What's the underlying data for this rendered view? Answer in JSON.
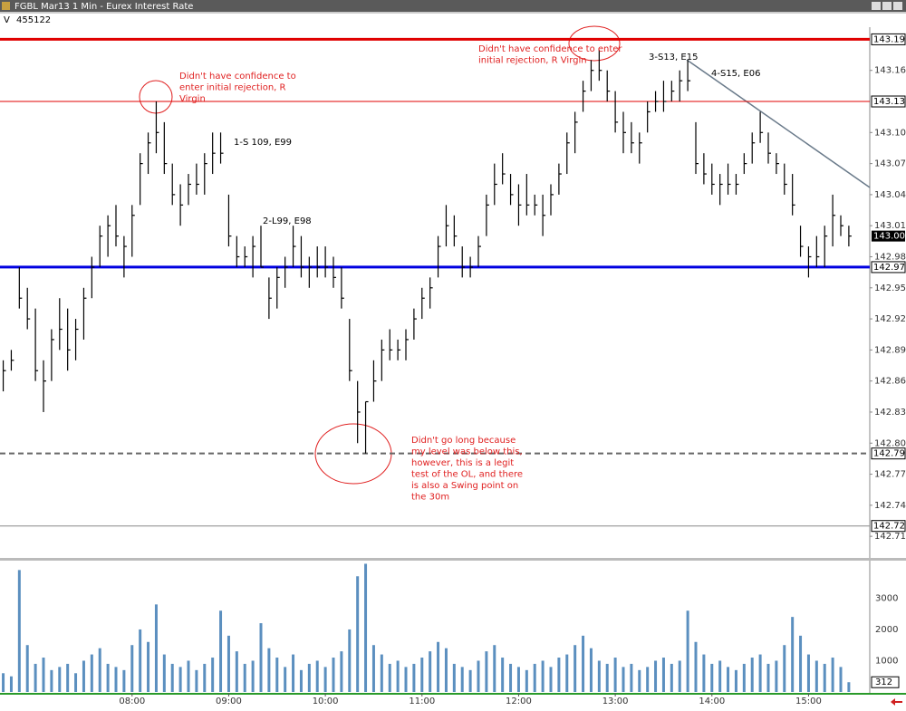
{
  "chart_data": {
    "type": "ohlc",
    "title": "FGBL Mar13 1 Min - Eurex Interest Rate",
    "volume_label": "V",
    "volume_total": 455122,
    "x": [
      "06:40",
      "06:45",
      "06:50",
      "06:55",
      "07:00",
      "07:05",
      "07:10",
      "07:15",
      "07:20",
      "07:25",
      "07:30",
      "07:35",
      "07:40",
      "07:45",
      "07:50",
      "07:55",
      "08:00",
      "08:05",
      "08:10",
      "08:15",
      "08:20",
      "08:25",
      "08:30",
      "08:35",
      "08:40",
      "08:45",
      "08:50",
      "08:55",
      "09:00",
      "09:05",
      "09:10",
      "09:15",
      "09:20",
      "09:25",
      "09:30",
      "09:35",
      "09:40",
      "09:45",
      "09:50",
      "09:55",
      "10:00",
      "10:05",
      "10:10",
      "10:15",
      "10:20",
      "10:25",
      "10:30",
      "10:35",
      "10:40",
      "10:45",
      "10:50",
      "10:55",
      "11:00",
      "11:05",
      "11:10",
      "11:15",
      "11:20",
      "11:25",
      "11:30",
      "11:35",
      "11:40",
      "11:45",
      "11:50",
      "11:55",
      "12:00",
      "12:05",
      "12:10",
      "12:15",
      "12:20",
      "12:25",
      "12:30",
      "12:35",
      "12:40",
      "12:45",
      "12:50",
      "12:55",
      "13:00",
      "13:05",
      "13:10",
      "13:15",
      "13:20",
      "13:25",
      "13:30",
      "13:35",
      "13:40",
      "13:45",
      "13:50",
      "13:55",
      "14:00",
      "14:05",
      "14:10",
      "14:15",
      "14:20",
      "14:25",
      "14:30",
      "14:35",
      "14:40",
      "14:45",
      "14:50",
      "14:55",
      "15:00",
      "15:05",
      "15:10",
      "15:15",
      "15:20",
      "15:25"
    ],
    "high": [
      142.88,
      142.89,
      142.97,
      142.95,
      142.93,
      142.88,
      142.91,
      142.94,
      142.93,
      142.92,
      142.95,
      142.98,
      143.01,
      143.02,
      143.03,
      143.0,
      143.03,
      143.08,
      143.1,
      143.13,
      143.11,
      143.07,
      143.05,
      143.06,
      143.07,
      143.08,
      143.1,
      143.1,
      143.04,
      143.0,
      142.99,
      143.0,
      143.01,
      142.96,
      142.97,
      142.98,
      143.01,
      143.0,
      142.98,
      142.99,
      142.99,
      142.98,
      142.97,
      142.92,
      142.86,
      142.84,
      142.88,
      142.9,
      142.91,
      142.9,
      142.91,
      142.93,
      142.95,
      142.96,
      143.0,
      143.03,
      143.02,
      142.99,
      142.98,
      143.0,
      143.04,
      143.07,
      143.08,
      143.06,
      143.05,
      143.06,
      143.04,
      143.04,
      143.05,
      143.07,
      143.1,
      143.12,
      143.15,
      143.17,
      143.18,
      143.16,
      143.14,
      143.12,
      143.11,
      143.1,
      143.13,
      143.14,
      143.15,
      143.15,
      143.16,
      143.17,
      143.11,
      143.08,
      143.07,
      143.06,
      143.07,
      143.06,
      143.08,
      143.1,
      143.12,
      143.1,
      143.08,
      143.07,
      143.06,
      143.01,
      142.99,
      143.0,
      143.01,
      143.04,
      143.02,
      143.01
    ],
    "low": [
      142.85,
      142.87,
      142.93,
      142.91,
      142.86,
      142.83,
      142.86,
      142.89,
      142.87,
      142.88,
      142.9,
      142.94,
      142.97,
      142.98,
      142.99,
      142.96,
      142.98,
      143.03,
      143.06,
      143.08,
      143.06,
      143.03,
      143.01,
      143.03,
      143.04,
      143.04,
      143.06,
      143.07,
      142.99,
      142.97,
      142.97,
      142.96,
      142.97,
      142.92,
      142.93,
      142.95,
      142.97,
      142.96,
      142.95,
      142.96,
      142.96,
      142.95,
      142.93,
      142.86,
      142.8,
      142.79,
      142.84,
      142.86,
      142.88,
      142.88,
      142.88,
      142.9,
      142.92,
      142.93,
      142.96,
      142.99,
      142.99,
      142.96,
      142.96,
      142.97,
      143.0,
      143.03,
      143.05,
      143.03,
      143.01,
      143.02,
      143.02,
      143.0,
      143.02,
      143.04,
      143.06,
      143.08,
      143.12,
      143.14,
      143.15,
      143.13,
      143.1,
      143.08,
      143.08,
      143.07,
      143.1,
      143.12,
      143.12,
      143.13,
      143.13,
      143.14,
      143.06,
      143.05,
      143.04,
      143.03,
      143.04,
      143.04,
      143.06,
      143.07,
      143.09,
      143.07,
      143.06,
      143.04,
      143.02,
      142.98,
      142.96,
      142.97,
      142.97,
      142.99,
      143.0,
      142.99
    ],
    "close": [
      142.87,
      142.88,
      142.94,
      142.92,
      142.87,
      142.86,
      142.9,
      142.91,
      142.89,
      142.91,
      142.94,
      142.97,
      143.0,
      143.01,
      143.0,
      142.99,
      143.02,
      143.07,
      143.09,
      143.1,
      143.07,
      143.04,
      143.03,
      143.05,
      143.05,
      143.07,
      143.08,
      143.08,
      143.0,
      142.98,
      142.98,
      142.99,
      142.97,
      142.94,
      142.96,
      142.97,
      142.99,
      142.97,
      142.97,
      142.97,
      142.97,
      142.96,
      142.94,
      142.87,
      142.83,
      142.84,
      142.86,
      142.89,
      142.89,
      142.89,
      142.9,
      142.92,
      142.94,
      142.95,
      142.99,
      143.01,
      143.0,
      142.97,
      142.97,
      142.99,
      143.03,
      143.05,
      143.06,
      143.04,
      143.03,
      143.03,
      143.03,
      143.02,
      143.04,
      143.06,
      143.09,
      143.11,
      143.14,
      143.16,
      143.16,
      143.14,
      143.11,
      143.1,
      143.09,
      143.09,
      143.12,
      143.13,
      143.13,
      143.14,
      143.15,
      143.15,
      143.07,
      143.06,
      143.05,
      143.05,
      143.05,
      143.05,
      143.07,
      143.09,
      143.1,
      143.08,
      143.07,
      143.05,
      143.03,
      142.99,
      142.98,
      142.98,
      143.0,
      143.02,
      143.01,
      143.0
    ],
    "volume": [
      600,
      500,
      3900,
      1500,
      900,
      1100,
      700,
      800,
      900,
      600,
      1000,
      1200,
      1400,
      900,
      800,
      700,
      1500,
      2000,
      1600,
      2800,
      1200,
      900,
      800,
      1000,
      700,
      900,
      1100,
      2600,
      1800,
      1300,
      900,
      1000,
      2200,
      1400,
      1100,
      800,
      1200,
      700,
      900,
      1000,
      800,
      1100,
      1300,
      2000,
      3700,
      4100,
      1500,
      1200,
      900,
      1000,
      800,
      900,
      1100,
      1300,
      1600,
      1400,
      900,
      800,
      700,
      1000,
      1300,
      1500,
      1100,
      900,
      800,
      700,
      900,
      1000,
      800,
      1100,
      1200,
      1500,
      1800,
      1400,
      1000,
      900,
      1100,
      800,
      900,
      700,
      800,
      1000,
      1100,
      900,
      1000,
      2600,
      1600,
      1200,
      900,
      1000,
      800,
      700,
      900,
      1100,
      1200,
      900,
      1000,
      1500,
      2400,
      1800,
      1200,
      1000,
      900,
      1100,
      800,
      312
    ],
    "bar_color": "#000000",
    "volume_color": "#5b8fbf",
    "xlim": [
      "06:38",
      "15:38"
    ],
    "xticks": [
      "08:00",
      "09:00",
      "10:00",
      "11:00",
      "12:00",
      "13:00",
      "14:00",
      "15:00"
    ],
    "ylim": [
      142.69,
      143.2
    ],
    "yticks": [
      143.16,
      {
        "value": 143.1,
        "label": "143.10"
      },
      143.07,
      143.04,
      143.01,
      142.98,
      142.95,
      142.92,
      142.89,
      142.86,
      142.83,
      {
        "value": 142.8,
        "label": "142.80"
      },
      142.77,
      142.74,
      142.71
    ],
    "volume_ylim": [
      0,
      4200
    ],
    "volume_yticks": [
      1000,
      2000,
      3000
    ],
    "levels": [
      {
        "value": 143.19,
        "label": "143.19",
        "color": "#e00000",
        "style": "thick"
      },
      {
        "value": 143.13,
        "label": "143.13",
        "color": "#e00000",
        "style": "thin"
      },
      {
        "value": 142.97,
        "label": "142.97",
        "color": "#0000e0",
        "style": "thick"
      },
      {
        "value": 142.79,
        "label": "142.79",
        "color": "#666666",
        "style": "dashed"
      },
      {
        "value": 142.72,
        "label": "142.72",
        "color": "#888888",
        "style": "thin"
      }
    ],
    "last_price": {
      "value": 143.0,
      "label": "143.00"
    },
    "annotations": [
      {
        "lines": [
          "Didn't have confidence to",
          "enter initial rejection, R",
          "Virgin"
        ],
        "color": "#e02020"
      },
      {
        "lines": [
          "Didn't have confidence to enter",
          "initial rejection, R Virgin"
        ],
        "color": "#e02020"
      },
      {
        "lines": [
          "Didn't go long because",
          "my level was below this,",
          "however, this is a legit",
          "test of the OL, and there",
          "is also a Swing point on",
          "the 30m"
        ],
        "color": "#e02020"
      },
      {
        "lines": [
          "1-S 109, E99"
        ],
        "color": "#000000"
      },
      {
        "lines": [
          "2-L99, E98"
        ],
        "color": "#000000"
      },
      {
        "lines": [
          "3-S13, E15"
        ],
        "color": "#000000"
      },
      {
        "lines": [
          "4-S15, E06"
        ],
        "color": "#000000"
      }
    ]
  }
}
